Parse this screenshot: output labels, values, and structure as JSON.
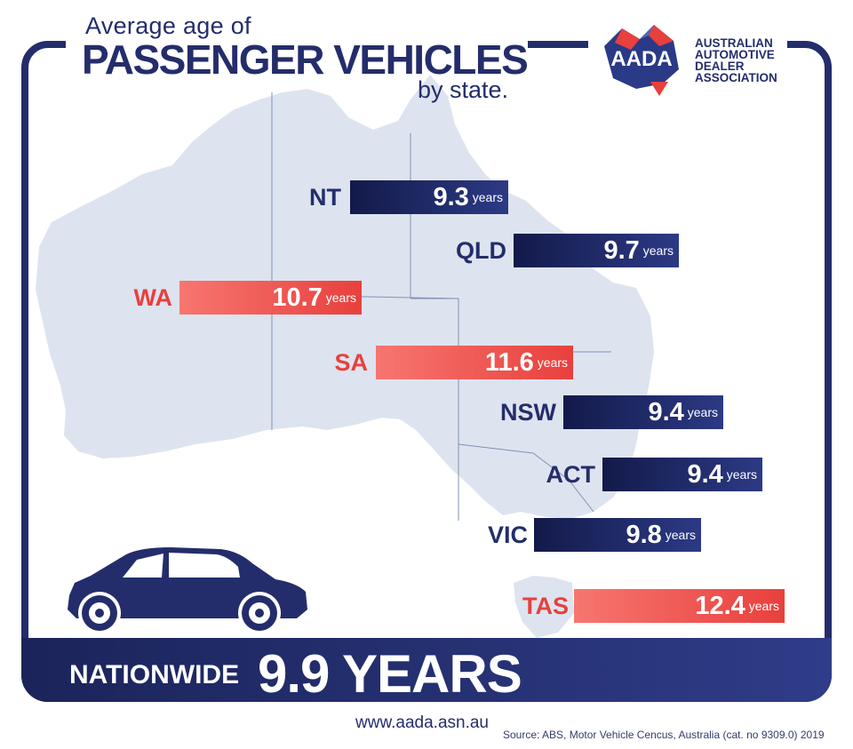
{
  "header": {
    "title_line1": "Average age of",
    "title_line2": "PASSENGER VEHICLES",
    "title_line3": "by state."
  },
  "logo": {
    "badge_text": "AADA",
    "name_lines": [
      "AUSTRALIAN",
      "AUTOMOTIVE",
      "DEALER",
      "ASSOCIATION"
    ]
  },
  "colors": {
    "navy": "#242d6b",
    "red": "#e8403d",
    "map": "#dde4ef"
  },
  "chart_data": {
    "type": "bar",
    "unit": "years",
    "categories": [
      "NT",
      "QLD",
      "WA",
      "SA",
      "NSW",
      "ACT",
      "VIC",
      "TAS"
    ],
    "values": [
      9.3,
      9.7,
      10.7,
      11.6,
      9.4,
      9.4,
      9.8,
      12.4
    ],
    "value_labels": [
      "9.3",
      "9.7",
      "10.7",
      "11.6",
      "9.4",
      "9.4",
      "9.8",
      "12.4"
    ],
    "above_national_average": [
      false,
      false,
      true,
      true,
      false,
      false,
      false,
      true
    ]
  },
  "nationwide": {
    "label": "NATIONWIDE",
    "value": "9.9 YEARS"
  },
  "footer": {
    "url": "www.aada.asn.au",
    "source": "Source: ABS, Motor Vehicle Cencus, Australia (cat. no 9309.0) 2019"
  }
}
